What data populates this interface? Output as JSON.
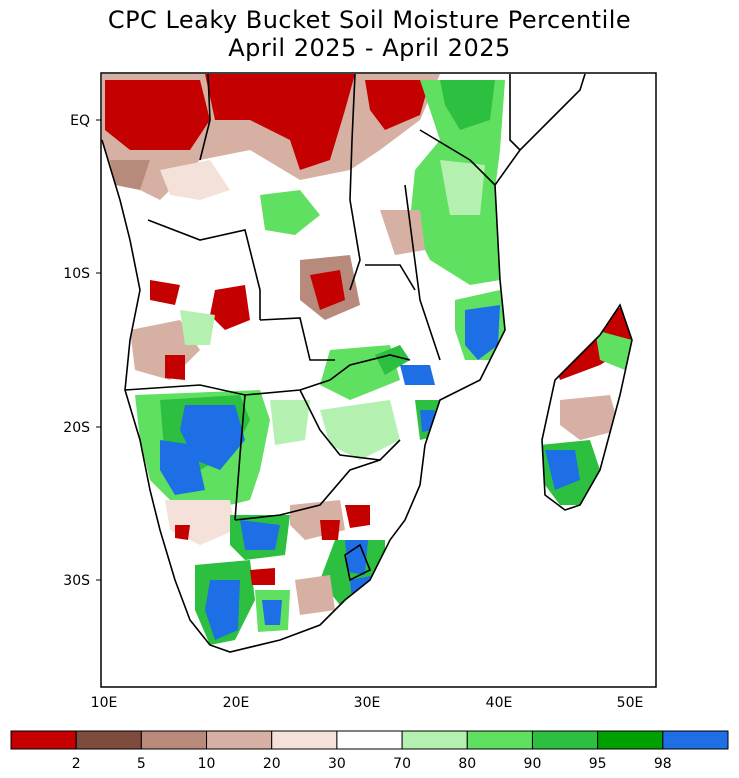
{
  "title": "CPC Leaky Bucket Soil Moisture Percentile",
  "subtitle": "April 2025 - April 2025",
  "lon_ticks": [
    "10E",
    "20E",
    "30E",
    "40E",
    "50E"
  ],
  "lat_ticks": [
    "EQ",
    "10S",
    "20S",
    "30S"
  ],
  "colorbar": {
    "bins": [
      {
        "color": "#c40000"
      },
      {
        "color": "#7d4c3c"
      },
      {
        "color": "#b88a7c"
      },
      {
        "color": "#d6b0a2"
      },
      {
        "color": "#f4e1da"
      },
      {
        "color": "#ffffff"
      },
      {
        "color": "#b4f0b0"
      },
      {
        "color": "#5fe060"
      },
      {
        "color": "#2dc040"
      },
      {
        "color": "#00a000"
      },
      {
        "color": "#1e6ee6"
      }
    ],
    "labels": [
      "2",
      "5",
      "10",
      "20",
      "30",
      "70",
      "80",
      "90",
      "95",
      "98"
    ]
  }
}
